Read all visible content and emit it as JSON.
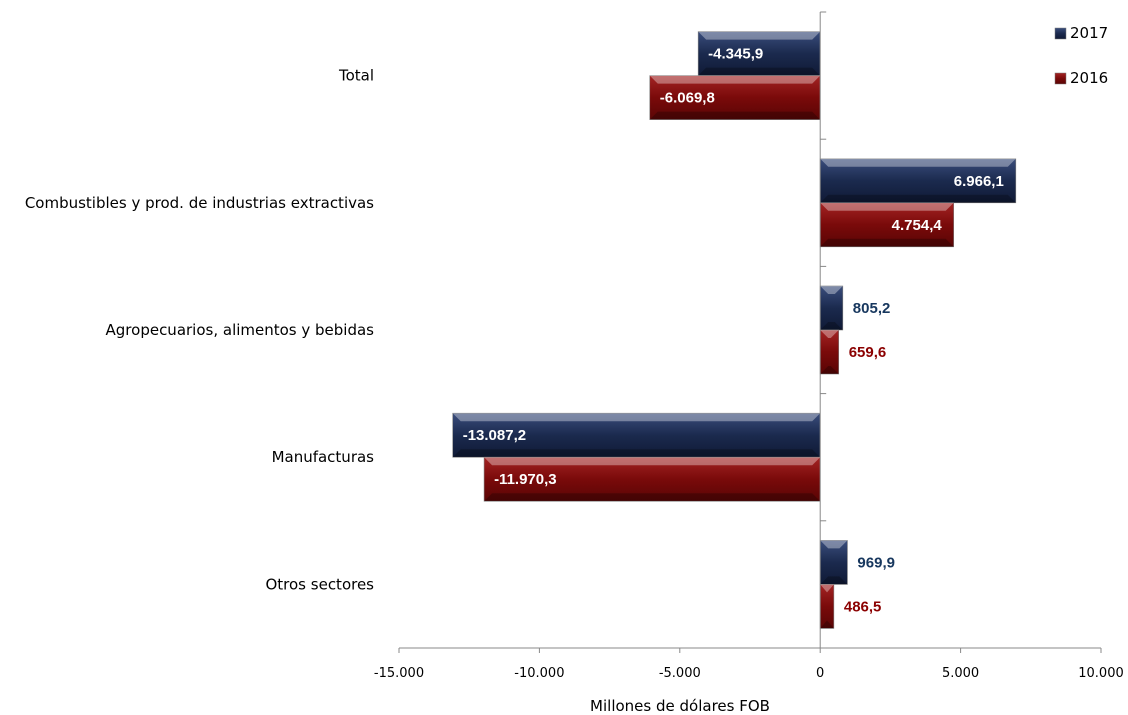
{
  "chart_data": {
    "type": "bar",
    "orientation": "horizontal",
    "title": "",
    "xlabel": "Millones de dólares FOB",
    "ylabel": "",
    "categories": [
      "Total",
      "Combustibles y prod. de industrias extractivas",
      "Agropecuarios, alimentos y bebidas",
      "Manufacturas",
      "Otros sectores"
    ],
    "series": [
      {
        "name": "2017",
        "color": "#1b2a4e",
        "label_color": "#17375e",
        "values": [
          -4345.9,
          6966.1,
          805.2,
          -13087.2,
          969.9
        ],
        "labels": [
          "-4.345,9",
          "6.966,1",
          "805,2",
          "-13.087,2",
          "969,9"
        ]
      },
      {
        "name": "2016",
        "color": "#7a0a0a",
        "label_color": "#8b0000",
        "values": [
          -6069.8,
          4754.4,
          659.6,
          -11970.3,
          486.5
        ],
        "labels": [
          "-6.069,8",
          "4.754,4",
          "659,6",
          "-11.970,3",
          "486,5"
        ]
      }
    ],
    "xlim": [
      -15000,
      10000
    ],
    "xticks": [
      -15000,
      -10000,
      -5000,
      0,
      5000,
      10000
    ],
    "xtick_labels": [
      "-15.000",
      "-10.000",
      "-5.000",
      "0",
      "5.000",
      "10.000"
    ],
    "grid": false,
    "legend_position": "top-right"
  }
}
